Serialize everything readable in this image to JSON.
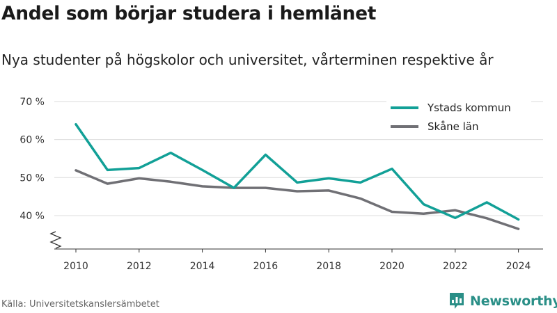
{
  "title": "Andel som börjar studera i hemlänet",
  "subtitle": "Nya studenter på högskolor och universitet, vårterminen respektive år",
  "source": "Källa: Universitetskanslersämbetet",
  "brand": {
    "name": "Newsworthy",
    "icon": "bar-chart-logo-icon",
    "color": "#2a8f87"
  },
  "chart_data": {
    "type": "line",
    "x": [
      2010,
      2011,
      2012,
      2013,
      2014,
      2015,
      2016,
      2017,
      2018,
      2019,
      2020,
      2021,
      2022,
      2023,
      2024
    ],
    "series": [
      {
        "name": "Ystads kommun",
        "color": "#12a097",
        "values": [
          64.0,
          52.0,
          52.5,
          56.5,
          52.0,
          47.3,
          56.0,
          48.7,
          49.8,
          48.7,
          52.3,
          43.0,
          39.4,
          43.5,
          39.0
        ]
      },
      {
        "name": "Skåne län",
        "color": "#707075",
        "values": [
          51.9,
          48.4,
          49.8,
          48.9,
          47.7,
          47.3,
          47.3,
          46.4,
          46.6,
          44.5,
          41.0,
          40.5,
          41.4,
          39.3,
          36.5
        ]
      }
    ],
    "x_ticks": [
      2010,
      2012,
      2014,
      2016,
      2018,
      2020,
      2022,
      2024
    ],
    "y_ticks": [
      40,
      50,
      60,
      70
    ],
    "y_tick_labels": [
      "40 %",
      "50 %",
      "60 %",
      "70 %"
    ],
    "ylim": [
      32,
      70
    ],
    "xlim": [
      2009.2,
      2024.2
    ],
    "y_axis_break": true,
    "grid": true,
    "legend_position": "top-right"
  }
}
